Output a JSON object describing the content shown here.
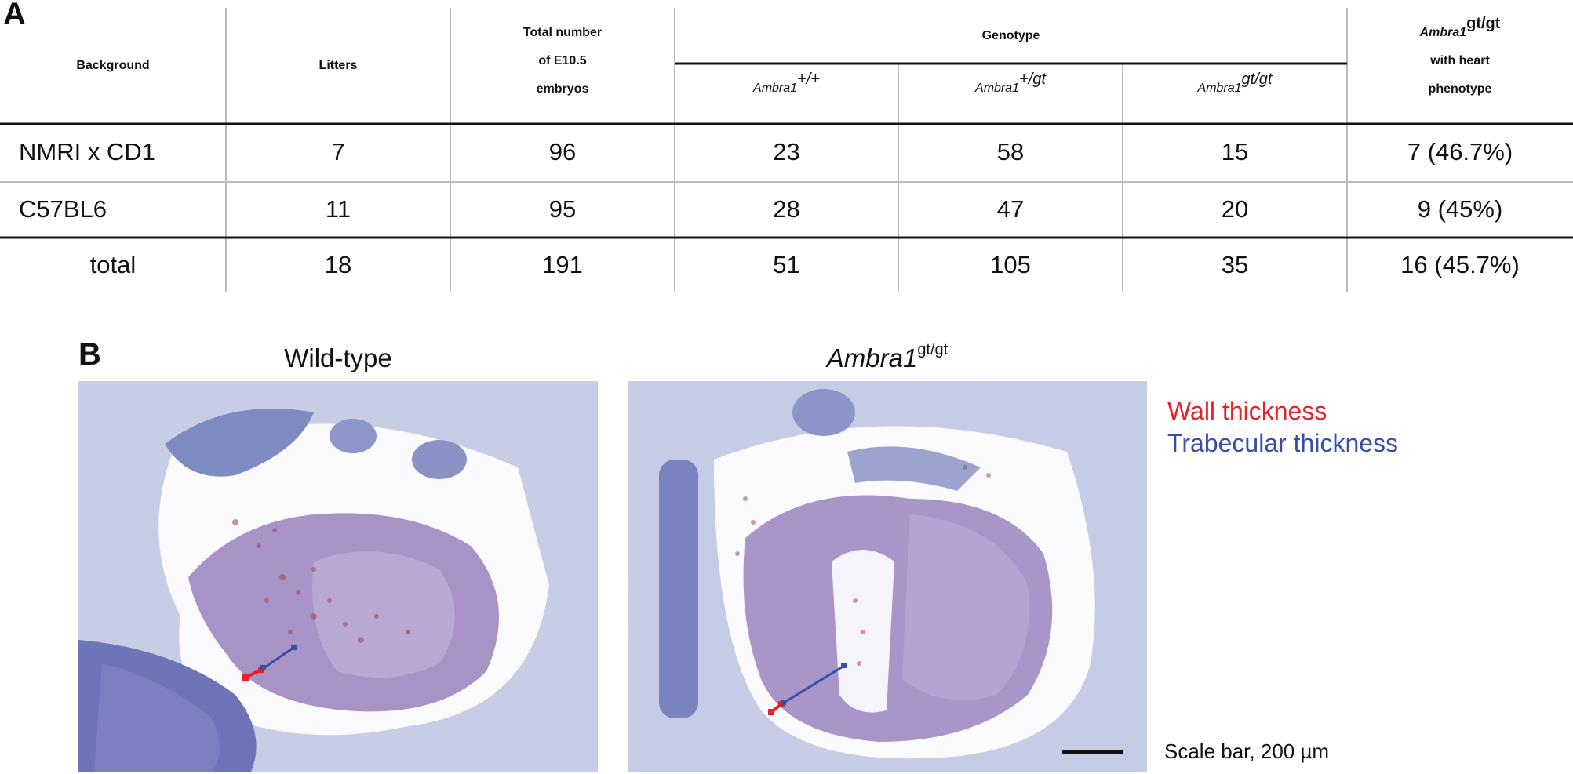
{
  "panel_a_label": "A",
  "panel_b_label": "B",
  "table": {
    "headers": {
      "background": "Background",
      "litters": "Litters",
      "total_embryos": [
        "Total number",
        "of E10.5",
        "embryos"
      ],
      "genotype": "Genotype",
      "wt": {
        "base": "Ambra1",
        "sup": "+/+"
      },
      "het": {
        "base": "Ambra1",
        "sup": "+/gt"
      },
      "hom": {
        "base": "Ambra1",
        "sup": "gt/gt"
      },
      "phenotype": {
        "base": "Ambra1",
        "sup": "gt/gt",
        "line2": "with heart",
        "line3": "phenotype"
      }
    },
    "rows": [
      {
        "background": "NMRI x CD1",
        "litters": "7",
        "total": "96",
        "wt": "23",
        "het": "58",
        "hom": "15",
        "phenotype": "7 (46.7%)"
      },
      {
        "background": "C57BL6",
        "litters": "11",
        "total": "95",
        "wt": "28",
        "het": "47",
        "hom": "20",
        "phenotype": "9 (45%)"
      },
      {
        "background": "total",
        "litters": "18",
        "total": "191",
        "wt": "51",
        "het": "105",
        "hom": "35",
        "phenotype": "16 (45.7%)"
      }
    ]
  },
  "panel_b": {
    "left_title": "Wild-type",
    "right_title": {
      "base": "Ambra1",
      "sup": "gt/gt"
    },
    "legend": {
      "wall": {
        "label": "Wall thickness",
        "color": "#e8202a"
      },
      "trabecular": {
        "label": "Trabecular thickness",
        "color": "#3a4ea8"
      }
    },
    "scale_bar_label": "Scale bar, 200 µm"
  }
}
